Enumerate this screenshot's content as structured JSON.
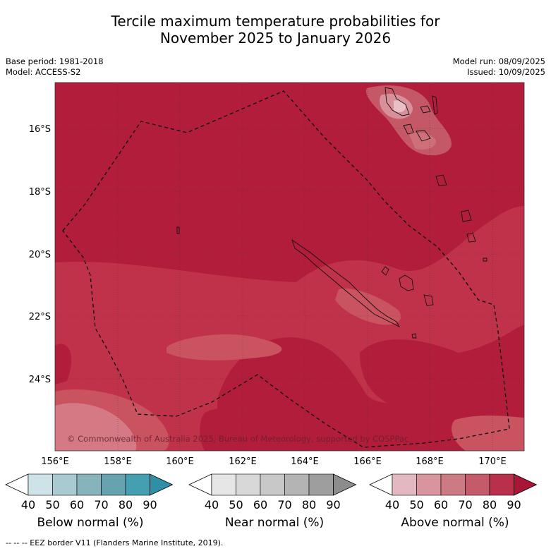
{
  "title": {
    "line1": "Tercile maximum temperature probabilities for",
    "line2": "November 2025 to January 2026"
  },
  "meta": {
    "base_period": "Base period: 1981-2018",
    "model": "Model: ACCESS-S2",
    "model_run": "Model run: 08/09/2025",
    "issued": "Issued: 10/09/2025"
  },
  "map": {
    "lat_labels": [
      "16°S",
      "18°S",
      "20°S",
      "22°S",
      "24°S"
    ],
    "lon_labels": [
      "156°E",
      "158°E",
      "160°E",
      "162°E",
      "164°E",
      "166°E",
      "168°E",
      "170°E"
    ],
    "copyright": "© Commonwealth of Australia 2025, Bureau of Meteorology, supported by COSPPac"
  },
  "colorbars": [
    {
      "name": "Below normal (%)",
      "ticks": [
        "40",
        "50",
        "60",
        "70",
        "80",
        "90"
      ],
      "colors": [
        "#ffffff",
        "#cde3e8",
        "#a9cad0",
        "#87b3bd",
        "#66a3af",
        "#44a0b0",
        "#2e8fa6"
      ]
    },
    {
      "name": "Near normal (%)",
      "ticks": [
        "40",
        "50",
        "60",
        "70",
        "80",
        "90"
      ],
      "colors": [
        "#ffffff",
        "#e6e6e6",
        "#d8d8d8",
        "#c8c8c8",
        "#b4b4b4",
        "#9e9e9e",
        "#8c8c8c"
      ]
    },
    {
      "name": "Above normal (%)",
      "ticks": [
        "40",
        "50",
        "60",
        "70",
        "80",
        "90"
      ],
      "colors": [
        "#ffffff",
        "#e4b8c0",
        "#d9959e",
        "#cc7a84",
        "#c55a6a",
        "#b9304c",
        "#a81535"
      ]
    }
  ],
  "footnote": "--  --  -- EEZ border V11 (Flanders Marine Institute, 2019)."
}
